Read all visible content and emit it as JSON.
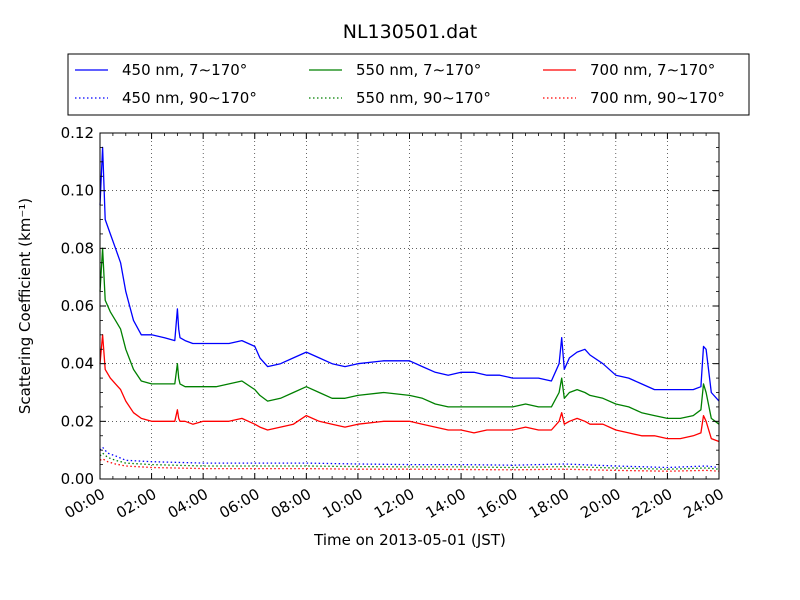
{
  "chart_data": {
    "type": "line",
    "title": "NL130501.dat",
    "xlabel": "Time on 2013-05-01 (JST)",
    "ylabel": "Scattering Coefficient (km⁻¹)",
    "xlim": [
      0,
      24
    ],
    "ylim": [
      0,
      0.12
    ],
    "x_ticks": [
      0,
      2,
      4,
      6,
      8,
      10,
      12,
      14,
      16,
      18,
      20,
      22,
      24
    ],
    "x_tick_labels": [
      "00:00",
      "02:00",
      "04:00",
      "06:00",
      "08:00",
      "10:00",
      "12:00",
      "14:00",
      "16:00",
      "18:00",
      "20:00",
      "22:00",
      "24:00"
    ],
    "y_ticks": [
      0,
      0.02,
      0.04,
      0.06,
      0.08,
      0.1,
      0.12
    ],
    "y_tick_labels": [
      "0.00",
      "0.02",
      "0.04",
      "0.06",
      "0.08",
      "0.10",
      "0.12"
    ],
    "grid": true,
    "legend_position": "top (above plot)",
    "series": [
      {
        "name": "450 nm, 7∼170°",
        "color": "#0000ff",
        "style": "solid",
        "x": [
          0,
          0.1,
          0.2,
          0.4,
          0.6,
          0.8,
          1.0,
          1.3,
          1.6,
          2.0,
          2.5,
          2.9,
          3.0,
          3.05,
          3.1,
          3.3,
          3.6,
          4.0,
          4.5,
          5.0,
          5.5,
          6.0,
          6.2,
          6.5,
          7.0,
          7.5,
          8.0,
          8.5,
          9.0,
          9.5,
          10.0,
          11.0,
          12.0,
          12.5,
          13.0,
          13.5,
          14.0,
          14.5,
          15.0,
          15.5,
          16.0,
          16.5,
          17.0,
          17.5,
          17.8,
          17.9,
          18.0,
          18.2,
          18.5,
          18.8,
          19.0,
          19.5,
          20.0,
          20.5,
          21.0,
          21.5,
          22.0,
          22.5,
          23.0,
          23.3,
          23.4,
          23.5,
          23.7,
          24.0
        ],
        "y": [
          0.095,
          0.115,
          0.09,
          0.085,
          0.08,
          0.075,
          0.065,
          0.055,
          0.05,
          0.05,
          0.049,
          0.048,
          0.059,
          0.052,
          0.049,
          0.048,
          0.047,
          0.047,
          0.047,
          0.047,
          0.048,
          0.046,
          0.042,
          0.039,
          0.04,
          0.042,
          0.044,
          0.042,
          0.04,
          0.039,
          0.04,
          0.041,
          0.041,
          0.039,
          0.037,
          0.036,
          0.037,
          0.037,
          0.036,
          0.036,
          0.035,
          0.035,
          0.035,
          0.034,
          0.04,
          0.049,
          0.038,
          0.042,
          0.044,
          0.045,
          0.043,
          0.04,
          0.036,
          0.035,
          0.033,
          0.031,
          0.031,
          0.031,
          0.031,
          0.032,
          0.046,
          0.045,
          0.03,
          0.027
        ]
      },
      {
        "name": "450 nm, 90∼170°",
        "color": "#0000ff",
        "style": "dotted",
        "x": [
          0,
          0.1,
          0.3,
          0.6,
          1.0,
          2.0,
          4.0,
          6.0,
          8.0,
          10.0,
          12.0,
          14.0,
          16.0,
          18.0,
          20.0,
          22.0,
          23.5,
          24.0
        ],
        "y": [
          0.01,
          0.011,
          0.009,
          0.008,
          0.0065,
          0.006,
          0.0055,
          0.0055,
          0.0055,
          0.0052,
          0.005,
          0.005,
          0.0048,
          0.0052,
          0.0045,
          0.004,
          0.0045,
          0.004
        ]
      },
      {
        "name": "550 nm, 7∼170°",
        "color": "#008000",
        "style": "solid",
        "x": [
          0,
          0.1,
          0.2,
          0.4,
          0.6,
          0.8,
          1.0,
          1.3,
          1.6,
          2.0,
          2.5,
          2.9,
          3.0,
          3.05,
          3.1,
          3.3,
          3.6,
          4.0,
          4.5,
          5.0,
          5.5,
          6.0,
          6.2,
          6.5,
          7.0,
          7.5,
          8.0,
          8.5,
          9.0,
          9.5,
          10.0,
          11.0,
          12.0,
          12.5,
          13.0,
          13.5,
          14.0,
          14.5,
          15.0,
          15.5,
          16.0,
          16.5,
          17.0,
          17.5,
          17.8,
          17.9,
          18.0,
          18.2,
          18.5,
          18.8,
          19.0,
          19.5,
          20.0,
          20.5,
          21.0,
          21.5,
          22.0,
          22.5,
          23.0,
          23.3,
          23.4,
          23.5,
          23.7,
          24.0
        ],
        "y": [
          0.065,
          0.08,
          0.062,
          0.058,
          0.055,
          0.052,
          0.045,
          0.038,
          0.034,
          0.033,
          0.033,
          0.033,
          0.04,
          0.035,
          0.033,
          0.032,
          0.032,
          0.032,
          0.032,
          0.033,
          0.034,
          0.031,
          0.029,
          0.027,
          0.028,
          0.03,
          0.032,
          0.03,
          0.028,
          0.028,
          0.029,
          0.03,
          0.029,
          0.028,
          0.026,
          0.025,
          0.025,
          0.025,
          0.025,
          0.025,
          0.025,
          0.026,
          0.025,
          0.025,
          0.03,
          0.035,
          0.028,
          0.03,
          0.031,
          0.03,
          0.029,
          0.028,
          0.026,
          0.025,
          0.023,
          0.022,
          0.021,
          0.021,
          0.022,
          0.024,
          0.033,
          0.03,
          0.021,
          0.019
        ]
      },
      {
        "name": "550 nm, 90∼170°",
        "color": "#008000",
        "style": "dotted",
        "x": [
          0,
          0.1,
          0.3,
          0.6,
          1.0,
          2.0,
          4.0,
          6.0,
          8.0,
          10.0,
          12.0,
          14.0,
          16.0,
          18.0,
          20.0,
          22.0,
          23.5,
          24.0
        ],
        "y": [
          0.008,
          0.009,
          0.0075,
          0.0065,
          0.0055,
          0.005,
          0.0045,
          0.0045,
          0.0045,
          0.0043,
          0.0042,
          0.0042,
          0.004,
          0.0043,
          0.0038,
          0.0034,
          0.0038,
          0.0034
        ]
      },
      {
        "name": "700 nm, 7∼170°",
        "color": "#ff0000",
        "style": "solid",
        "x": [
          0,
          0.1,
          0.2,
          0.4,
          0.6,
          0.8,
          1.0,
          1.3,
          1.6,
          2.0,
          2.5,
          2.9,
          3.0,
          3.05,
          3.1,
          3.3,
          3.6,
          4.0,
          4.5,
          5.0,
          5.5,
          6.0,
          6.2,
          6.5,
          7.0,
          7.5,
          8.0,
          8.5,
          9.0,
          9.5,
          10.0,
          11.0,
          12.0,
          12.5,
          13.0,
          13.5,
          14.0,
          14.5,
          15.0,
          15.5,
          16.0,
          16.5,
          17.0,
          17.5,
          17.8,
          17.9,
          18.0,
          18.2,
          18.5,
          18.8,
          19.0,
          19.5,
          20.0,
          20.5,
          21.0,
          21.5,
          22.0,
          22.5,
          23.0,
          23.3,
          23.4,
          23.5,
          23.7,
          24.0
        ],
        "y": [
          0.04,
          0.05,
          0.038,
          0.035,
          0.033,
          0.031,
          0.027,
          0.023,
          0.021,
          0.02,
          0.02,
          0.02,
          0.024,
          0.021,
          0.02,
          0.02,
          0.019,
          0.02,
          0.02,
          0.02,
          0.021,
          0.019,
          0.018,
          0.017,
          0.018,
          0.019,
          0.022,
          0.02,
          0.019,
          0.018,
          0.019,
          0.02,
          0.02,
          0.019,
          0.018,
          0.017,
          0.017,
          0.016,
          0.017,
          0.017,
          0.017,
          0.018,
          0.017,
          0.017,
          0.02,
          0.023,
          0.019,
          0.02,
          0.021,
          0.02,
          0.019,
          0.019,
          0.017,
          0.016,
          0.015,
          0.015,
          0.014,
          0.014,
          0.015,
          0.016,
          0.022,
          0.02,
          0.014,
          0.013
        ]
      },
      {
        "name": "700 nm, 90∼170°",
        "color": "#ff0000",
        "style": "dotted",
        "x": [
          0,
          0.1,
          0.3,
          0.6,
          1.0,
          2.0,
          4.0,
          6.0,
          8.0,
          10.0,
          12.0,
          14.0,
          16.0,
          18.0,
          20.0,
          22.0,
          23.5,
          24.0
        ],
        "y": [
          0.0065,
          0.007,
          0.006,
          0.0052,
          0.0045,
          0.004,
          0.0036,
          0.0036,
          0.0036,
          0.0034,
          0.0034,
          0.0033,
          0.0032,
          0.0034,
          0.003,
          0.0027,
          0.003,
          0.0027
        ]
      }
    ]
  }
}
